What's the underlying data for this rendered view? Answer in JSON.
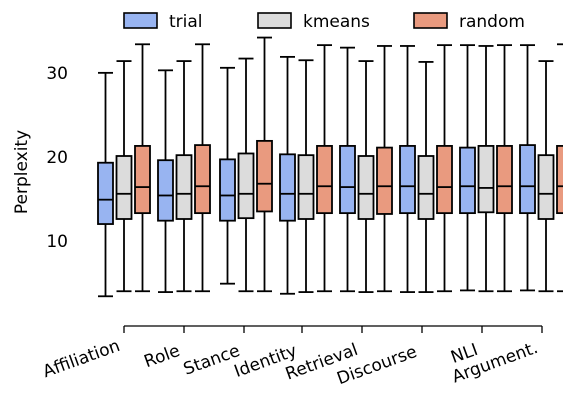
{
  "chart_data": {
    "type": "boxplot",
    "ylabel": "Perplexity",
    "ylim": [
      0,
      40
    ],
    "yticks": [
      10,
      20,
      30
    ],
    "categories": [
      "Affiliation",
      "Role",
      "Stance",
      "Identity",
      "Retrieval",
      "Discourse",
      "NLI",
      "Argument."
    ],
    "series": [
      {
        "name": "trial",
        "color": "#98b4f1",
        "boxes": [
          {
            "min": 3.3,
            "q1": 11.9,
            "median": 14.8,
            "q3": 19.2,
            "max": 29.9
          },
          {
            "min": 3.8,
            "q1": 12.3,
            "median": 15.3,
            "q3": 19.5,
            "max": 30.2
          },
          {
            "min": 4.8,
            "q1": 12.3,
            "median": 15.3,
            "q3": 19.6,
            "max": 30.5
          },
          {
            "min": 3.6,
            "q1": 12.3,
            "median": 15.5,
            "q3": 20.2,
            "max": 31.8
          },
          {
            "min": 3.9,
            "q1": 13.2,
            "median": 16.3,
            "q3": 21.2,
            "max": 32.9
          },
          {
            "min": 3.8,
            "q1": 13.2,
            "median": 16.4,
            "q3": 21.2,
            "max": 33.1
          },
          {
            "min": 4.0,
            "q1": 13.2,
            "median": 16.4,
            "q3": 21.0,
            "max": 33.2
          },
          {
            "min": 4.0,
            "q1": 13.2,
            "median": 16.4,
            "q3": 21.3,
            "max": 33.2
          }
        ]
      },
      {
        "name": "kmeans",
        "color": "#dcdcdc",
        "boxes": [
          {
            "min": 3.9,
            "q1": 12.5,
            "median": 15.5,
            "q3": 20.0,
            "max": 31.3
          },
          {
            "min": 3.9,
            "q1": 12.5,
            "median": 15.5,
            "q3": 20.1,
            "max": 31.3
          },
          {
            "min": 3.9,
            "q1": 12.6,
            "median": 15.5,
            "q3": 20.3,
            "max": 31.6
          },
          {
            "min": 3.8,
            "q1": 12.5,
            "median": 15.5,
            "q3": 20.1,
            "max": 31.4
          },
          {
            "min": 3.8,
            "q1": 12.5,
            "median": 15.5,
            "q3": 20.0,
            "max": 31.3
          },
          {
            "min": 3.8,
            "q1": 12.5,
            "median": 15.5,
            "q3": 20.0,
            "max": 31.2
          },
          {
            "min": 3.9,
            "q1": 13.3,
            "median": 16.2,
            "q3": 21.2,
            "max": 33.1
          },
          {
            "min": 3.9,
            "q1": 12.5,
            "median": 15.5,
            "q3": 20.1,
            "max": 31.3
          }
        ]
      },
      {
        "name": "random",
        "color": "#e99a7f",
        "boxes": [
          {
            "min": 3.9,
            "q1": 13.2,
            "median": 16.3,
            "q3": 21.2,
            "max": 33.3
          },
          {
            "min": 3.9,
            "q1": 13.2,
            "median": 16.4,
            "q3": 21.3,
            "max": 33.3
          },
          {
            "min": 3.9,
            "q1": 13.4,
            "median": 16.7,
            "q3": 21.8,
            "max": 34.1
          },
          {
            "min": 3.9,
            "q1": 13.2,
            "median": 16.4,
            "q3": 21.2,
            "max": 33.2
          },
          {
            "min": 3.9,
            "q1": 13.1,
            "median": 16.4,
            "q3": 21.0,
            "max": 33.1
          },
          {
            "min": 3.9,
            "q1": 13.2,
            "median": 16.3,
            "q3": 21.2,
            "max": 33.2
          },
          {
            "min": 3.9,
            "q1": 13.2,
            "median": 16.4,
            "q3": 21.2,
            "max": 33.2
          },
          {
            "min": 3.9,
            "q1": 13.2,
            "median": 16.4,
            "q3": 21.2,
            "max": 33.3
          }
        ]
      }
    ],
    "legend_position": "top-center",
    "grid": false
  }
}
